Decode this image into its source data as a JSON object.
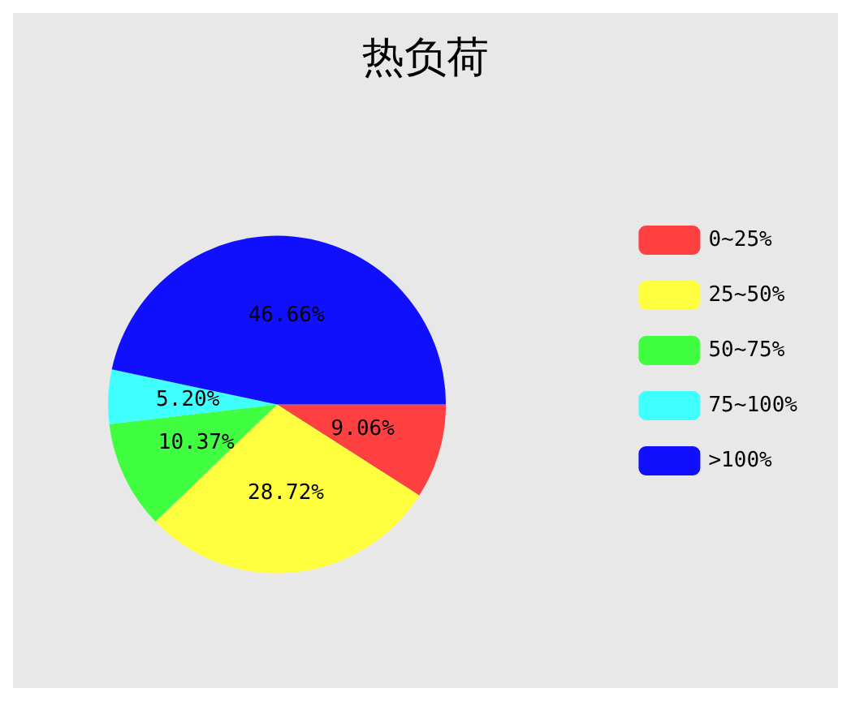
{
  "chart_data": {
    "type": "pie",
    "title": "热负荷",
    "categories": [
      "0~25%",
      "25~50%",
      "50~75%",
      "75~100%",
      ">100%"
    ],
    "values": [
      9.06,
      28.72,
      10.37,
      5.2,
      46.66
    ],
    "value_labels": [
      "9.06%",
      "28.72%",
      "10.37%",
      "5.20%",
      "46.66%"
    ],
    "colors": [
      "#ff4040",
      "#ffff40",
      "#40ff40",
      "#40ffff",
      "#1010ff"
    ],
    "legend": "right"
  }
}
